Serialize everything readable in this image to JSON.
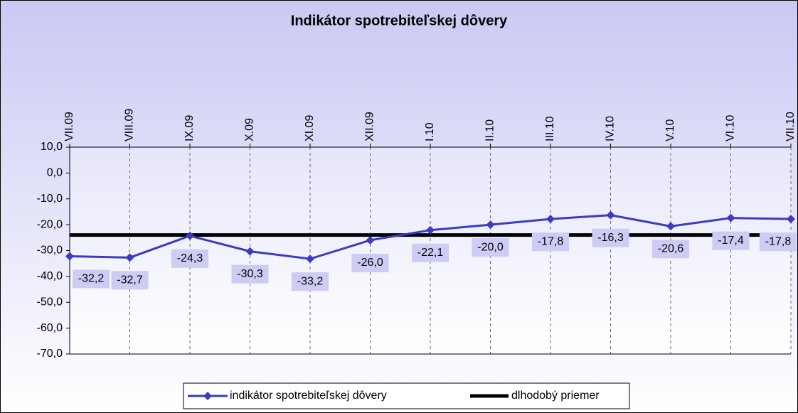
{
  "chart_data": {
    "type": "line",
    "title": "Indikátor spotrebiteľskej dôvery",
    "categories": [
      "VII.09",
      "VIII.09",
      "IX.09",
      "X.09",
      "XI.09",
      "XII.09",
      "I.10",
      "II.10",
      "III.10",
      "IV.10",
      "V.10",
      "VI.10",
      "VII.10"
    ],
    "series": [
      {
        "name": "indikátor spotrebiteľskej dôvery",
        "color": "#3b3bc4",
        "values": [
          -32.2,
          -32.7,
          -24.3,
          -30.3,
          -33.2,
          -26.0,
          -22.1,
          -20.0,
          -17.8,
          -16.3,
          -20.6,
          -17.4,
          -17.8
        ],
        "value_labels": [
          "-32,2",
          "-32,7",
          "-24,3",
          "-30,3",
          "-33,2",
          "-26,0",
          "-22,1",
          "-20,0",
          "-17,8",
          "-16,3",
          "-20,6",
          "-17,4",
          "-17,8"
        ]
      },
      {
        "name": "dlhodobý priemer",
        "color": "#000000",
        "values": [
          -24,
          -24,
          -24,
          -24,
          -24,
          -24,
          -24,
          -24,
          -24,
          -24,
          -24,
          -24,
          -24
        ]
      }
    ],
    "ylim": [
      -70,
      10
    ],
    "yticks": [
      {
        "value": -70,
        "label": "-70,0"
      },
      {
        "value": -60,
        "label": "-60,0"
      },
      {
        "value": -50,
        "label": "-50,0"
      },
      {
        "value": -40,
        "label": "-40,0"
      },
      {
        "value": -30,
        "label": "-30,0"
      },
      {
        "value": -20,
        "label": "-20,0"
      },
      {
        "value": -10,
        "label": "-10,0"
      },
      {
        "value": 0,
        "label": "0,0"
      },
      {
        "value": 10,
        "label": "10,0"
      }
    ],
    "grid": true
  }
}
